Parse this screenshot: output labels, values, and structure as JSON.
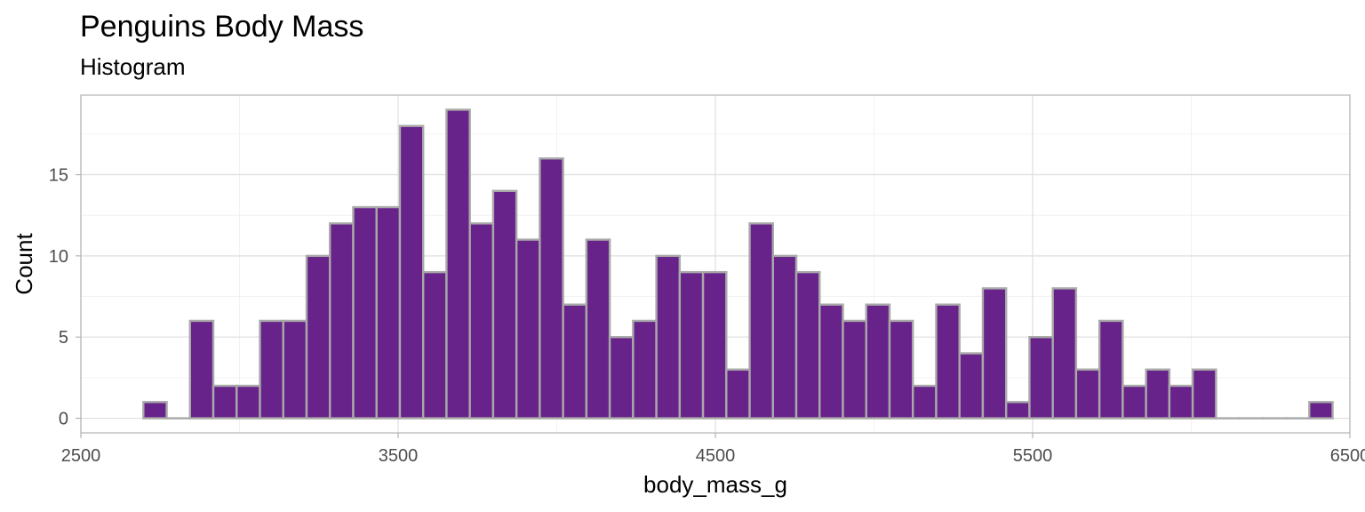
{
  "chart_data": {
    "type": "bar",
    "title": "Penguins Body Mass",
    "subtitle": "Histogram",
    "xlabel": "body_mass_g",
    "ylabel": "Count",
    "xlim": [
      2500,
      6500
    ],
    "ylim": [
      -0.9,
      19.9
    ],
    "x_ticks": [
      2500,
      3500,
      4500,
      5500,
      6500
    ],
    "y_ticks": [
      0,
      5,
      10,
      15
    ],
    "grid": true,
    "bin_width": 73.5,
    "bin_start": 2697,
    "fill_color": "#67238A",
    "border_color": "#A9A9A9",
    "values": [
      1,
      0,
      6,
      2,
      2,
      6,
      6,
      10,
      12,
      13,
      13,
      18,
      9,
      19,
      12,
      14,
      11,
      16,
      7,
      11,
      5,
      6,
      10,
      9,
      9,
      3,
      12,
      10,
      9,
      7,
      6,
      7,
      6,
      2,
      7,
      4,
      8,
      1,
      5,
      8,
      3,
      6,
      2,
      3,
      2,
      3,
      0,
      0,
      0,
      0,
      1
    ]
  }
}
